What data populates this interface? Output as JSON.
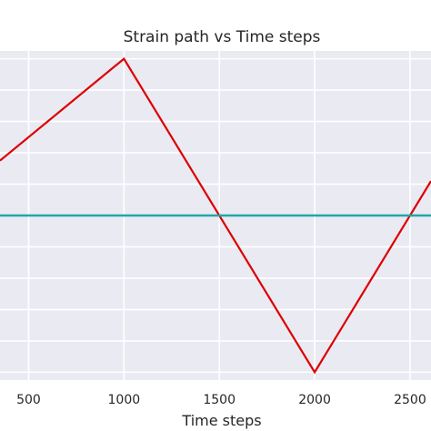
{
  "chart_data": {
    "type": "line",
    "title": "Strain path vs Time steps",
    "xlabel": "Time steps",
    "ylabel": "",
    "xlim": [
      350,
      2610
    ],
    "ylim": [
      -1.05,
      1.05
    ],
    "x_ticks": [
      500,
      1000,
      1500,
      2000,
      2500
    ],
    "x_tick_labels": [
      "500",
      "1000",
      "1500",
      "2000",
      "2500"
    ],
    "y_gridlines": [
      -1.0,
      -0.8,
      -0.6,
      -0.4,
      -0.2,
      0.0,
      0.2,
      0.4,
      0.6,
      0.8,
      1.0
    ],
    "grid": true,
    "background": "#eaeaf2",
    "series": [
      {
        "color": "#dd0000",
        "x": [
          350,
          1000,
          2000,
          2610
        ],
        "y": [
          0.35,
          1.0,
          -1.0,
          0.22
        ]
      },
      {
        "color": "#1fa8a8",
        "x": [
          350,
          2610
        ],
        "y": [
          0.0,
          0.0
        ]
      }
    ]
  }
}
